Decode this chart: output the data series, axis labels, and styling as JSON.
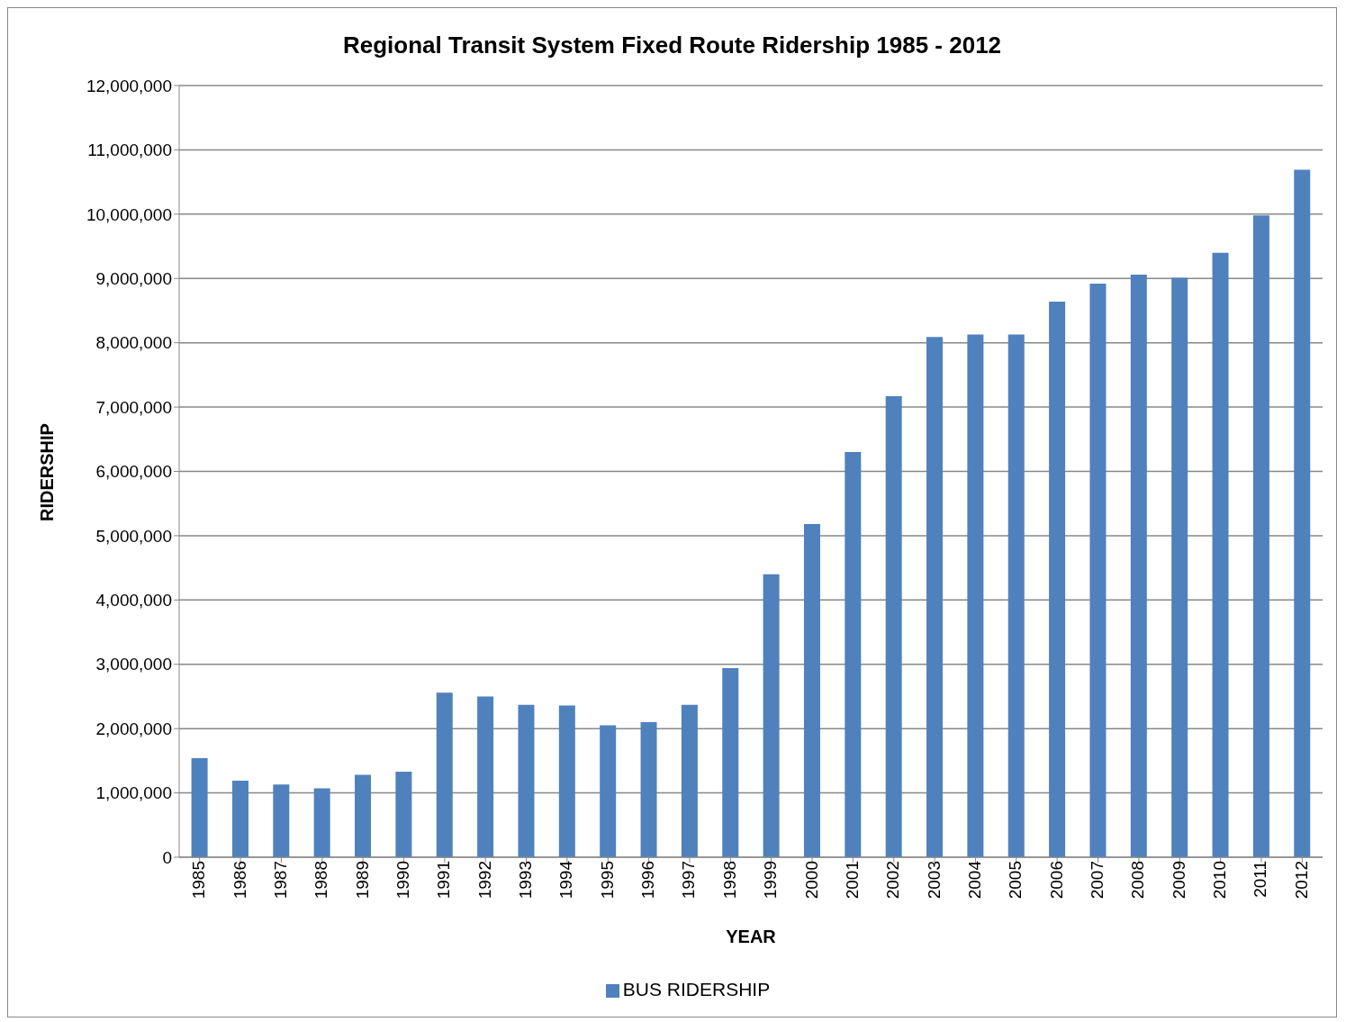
{
  "chart_data": {
    "type": "bar",
    "title": "Regional Transit System Fixed Route Ridership 1985 - 2012",
    "xlabel": "YEAR",
    "ylabel": "RIDERSHIP",
    "categories": [
      "1985",
      "1986",
      "1987",
      "1988",
      "1989",
      "1990",
      "1991",
      "1992",
      "1993",
      "1994",
      "1995",
      "1996",
      "1997",
      "1998",
      "1999",
      "2000",
      "2001",
      "2002",
      "2003",
      "2004",
      "2005",
      "2006",
      "2007",
      "2008",
      "2009",
      "2010",
      "2011",
      "2012"
    ],
    "series": [
      {
        "name": "BUS RIDERSHIP",
        "color": "#4f81bd",
        "values": [
          1540000,
          1190000,
          1130000,
          1070000,
          1280000,
          1330000,
          2560000,
          2500000,
          2370000,
          2360000,
          2050000,
          2100000,
          2370000,
          2940000,
          4400000,
          5180000,
          6300000,
          7170000,
          8090000,
          8130000,
          8130000,
          8640000,
          8920000,
          9060000,
          9010000,
          9400000,
          9980000,
          10690000
        ]
      }
    ],
    "ylim": [
      0,
      12000000
    ],
    "yticks": [
      0,
      {
        "value": 1000000,
        "label": "1,000,000"
      },
      {
        "value": 2000000,
        "label": "2,000,000"
      },
      {
        "value": 3000000,
        "label": "3,000,000"
      },
      {
        "value": 4000000,
        "label": "4,000,000"
      },
      {
        "value": 5000000,
        "label": "5,000,000"
      },
      {
        "value": 6000000,
        "label": "6,000,000"
      },
      {
        "value": 7000000,
        "label": "7,000,000"
      },
      {
        "value": 8000000,
        "label": "8,000,000"
      },
      {
        "value": 9000000,
        "label": "9,000,000"
      },
      {
        "value": 10000000,
        "label": "10,000,000"
      },
      {
        "value": 11000000,
        "label": "11,000,000"
      },
      {
        "value": 12000000,
        "label": "12,000,000"
      }
    ],
    "grid": "y",
    "legend": "bottom"
  }
}
